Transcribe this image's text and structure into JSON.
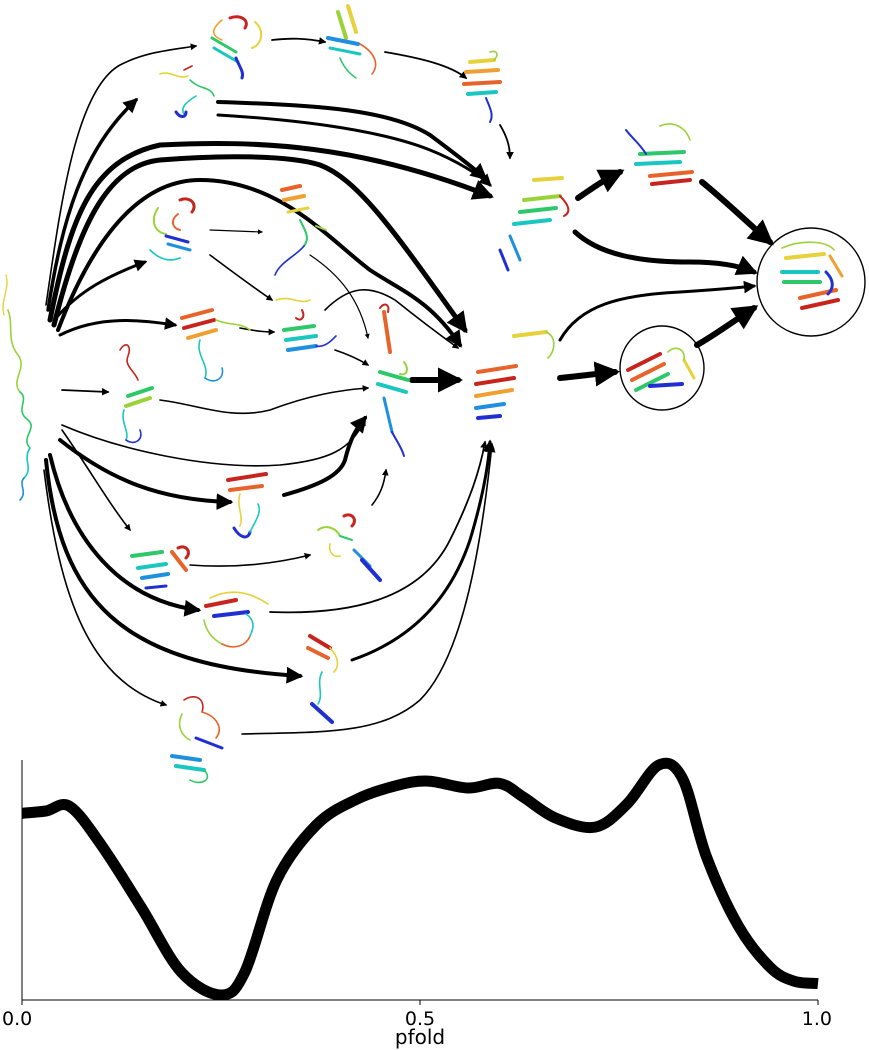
{
  "network": {
    "structure_colors": [
      "#1f2fd0",
      "#1f8fe0",
      "#19c7c0",
      "#2ec86a",
      "#9ad23a",
      "#e6d23a",
      "#f0a030",
      "#e8632a",
      "#c8241e"
    ],
    "arrow_color": "#000000",
    "circle_stroke": "#000000",
    "nodes": [
      {
        "id": "unfolded",
        "style": "coil"
      },
      {
        "id": "s_top1",
        "style": "mixed"
      },
      {
        "id": "s_top2",
        "style": "sheet"
      },
      {
        "id": "s_top3",
        "style": "helix"
      },
      {
        "id": "s_top_left",
        "style": "coil"
      },
      {
        "id": "s_mid_a",
        "style": "mixed"
      },
      {
        "id": "s_mid_b",
        "style": "helix"
      },
      {
        "id": "s_mid_c",
        "style": "mixed"
      },
      {
        "id": "s_mid_d",
        "style": "helix"
      },
      {
        "id": "s_sheet_small",
        "style": "sheet"
      },
      {
        "id": "hub_upper",
        "style": "helix"
      },
      {
        "id": "hub_center",
        "style": "helix"
      },
      {
        "id": "hub_main",
        "style": "helix"
      },
      {
        "id": "near_native_top",
        "style": "helix"
      },
      {
        "id": "near_native_circle",
        "style": "helix"
      },
      {
        "id": "native",
        "style": "helix"
      },
      {
        "id": "s_low1",
        "style": "helix"
      },
      {
        "id": "s_low2",
        "style": "mixed"
      },
      {
        "id": "s_low3",
        "style": "helix"
      },
      {
        "id": "s_low4",
        "style": "sheet"
      },
      {
        "id": "s_low5",
        "style": "helix"
      },
      {
        "id": "s_low6",
        "style": "sheet"
      }
    ]
  },
  "chart_data": {
    "type": "line",
    "xlabel": "pfold",
    "ylabel": "",
    "xlim": [
      0.0,
      1.0
    ],
    "xticks": [
      "0.0",
      "0.5",
      "1.0"
    ],
    "yticks_shown": false,
    "line_color": "#000000",
    "series": [
      {
        "x": [
          0.0,
          0.03,
          0.06,
          0.1,
          0.15,
          0.2,
          0.25,
          0.28,
          0.32,
          0.37,
          0.42,
          0.47,
          0.51,
          0.56,
          0.6,
          0.63,
          0.67,
          0.72,
          0.76,
          0.8,
          0.83,
          0.86,
          0.9,
          0.94,
          0.97,
          1.0
        ],
        "y": [
          0.79,
          0.8,
          0.82,
          0.65,
          0.38,
          0.1,
          0.0,
          0.1,
          0.5,
          0.74,
          0.85,
          0.91,
          0.93,
          0.9,
          0.92,
          0.86,
          0.77,
          0.73,
          0.83,
          1.0,
          0.94,
          0.6,
          0.3,
          0.12,
          0.06,
          0.05
        ]
      }
    ]
  }
}
